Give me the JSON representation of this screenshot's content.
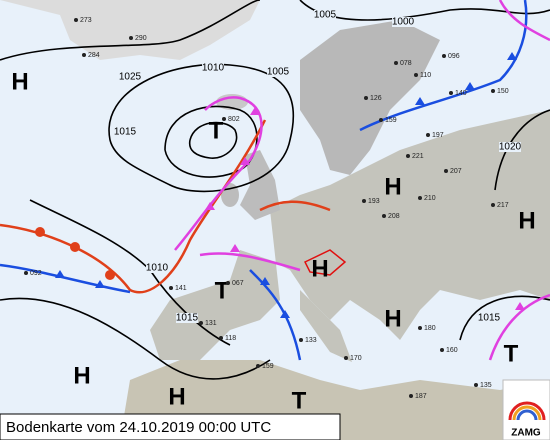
{
  "caption": "Bodenkarte vom 24.10.2019 00:00 UTC",
  "logo": "ZAMG",
  "pressure_centers": [
    "H",
    "T",
    "H",
    "H",
    "H",
    "T",
    "H",
    "T",
    "H",
    "H",
    "T"
  ],
  "isobar_labels": [
    "1025",
    "1010",
    "1005",
    "1005",
    "1000",
    "1015",
    "1010",
    "1015",
    "1020",
    "1015"
  ],
  "stations": [
    "273",
    "290",
    "284",
    "078",
    "110",
    "096",
    "140",
    "150",
    "126",
    "159",
    "197",
    "221",
    "207",
    "217",
    "193",
    "208",
    "210",
    "141",
    "131",
    "118",
    "133",
    "170",
    "135",
    "187",
    "159",
    "067",
    "092",
    "180",
    "160",
    "802"
  ]
}
